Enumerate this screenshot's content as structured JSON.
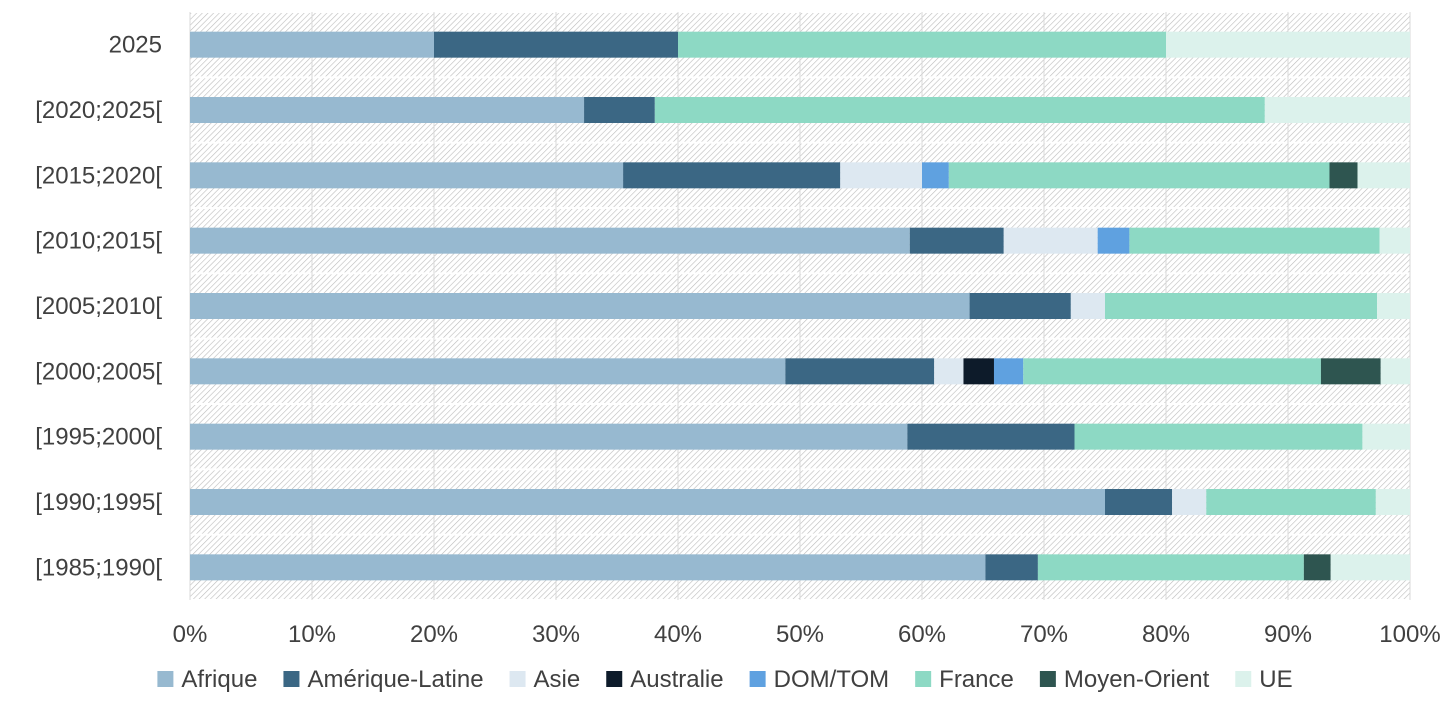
{
  "chart_data": {
    "type": "bar",
    "orientation": "horizontal",
    "stacked": "percent",
    "title": "",
    "xlabel": "",
    "ylabel": "",
    "xlim": [
      0,
      100
    ],
    "x_ticks": [
      "0%",
      "10%",
      "20%",
      "30%",
      "40%",
      "50%",
      "60%",
      "70%",
      "80%",
      "90%",
      "100%"
    ],
    "grid": true,
    "legend_position": "bottom",
    "categories": [
      "2025",
      "[2020;2025[",
      "[2015;2020[",
      "[2010;2015[",
      "[2005;2010[",
      "[2000;2005[",
      "[1995;2000[",
      "[1990;1995[",
      "[1985;1990["
    ],
    "series": [
      {
        "name": "Afrique",
        "color": "#97b9d0",
        "values": [
          20,
          32.3,
          35.5,
          59,
          63.9,
          48.8,
          58.8,
          75,
          65.2
        ]
      },
      {
        "name": "Amérique-Latine",
        "color": "#3b6784",
        "values": [
          20,
          5.8,
          17.8,
          7.7,
          8.3,
          12.2,
          13.7,
          5.5,
          4.3
        ]
      },
      {
        "name": "Asie",
        "color": "#dde8f1",
        "values": [
          0,
          0,
          6.7,
          7.7,
          2.8,
          2.4,
          0,
          2.8,
          0
        ]
      },
      {
        "name": "Australie",
        "color": "#0d1b2a",
        "values": [
          0,
          0,
          0,
          0,
          0,
          2.5,
          0,
          0,
          0
        ]
      },
      {
        "name": "DOM/TOM",
        "color": "#5fa1e0",
        "values": [
          0,
          0,
          2.2,
          2.6,
          0,
          2.4,
          0,
          0,
          0
        ]
      },
      {
        "name": "France",
        "color": "#8dd9c4",
        "values": [
          40,
          50,
          31.2,
          20.5,
          22.3,
          24.4,
          23.6,
          13.9,
          21.8
        ]
      },
      {
        "name": "Moyen-Orient",
        "color": "#2e5550",
        "values": [
          0,
          0,
          2.3,
          0,
          0,
          4.9,
          0,
          0,
          2.2
        ]
      },
      {
        "name": "UE",
        "color": "#dcf2ec",
        "values": [
          20,
          11.9,
          4.3,
          2.5,
          2.7,
          2.4,
          3.9,
          2.8,
          6.5
        ]
      }
    ]
  }
}
